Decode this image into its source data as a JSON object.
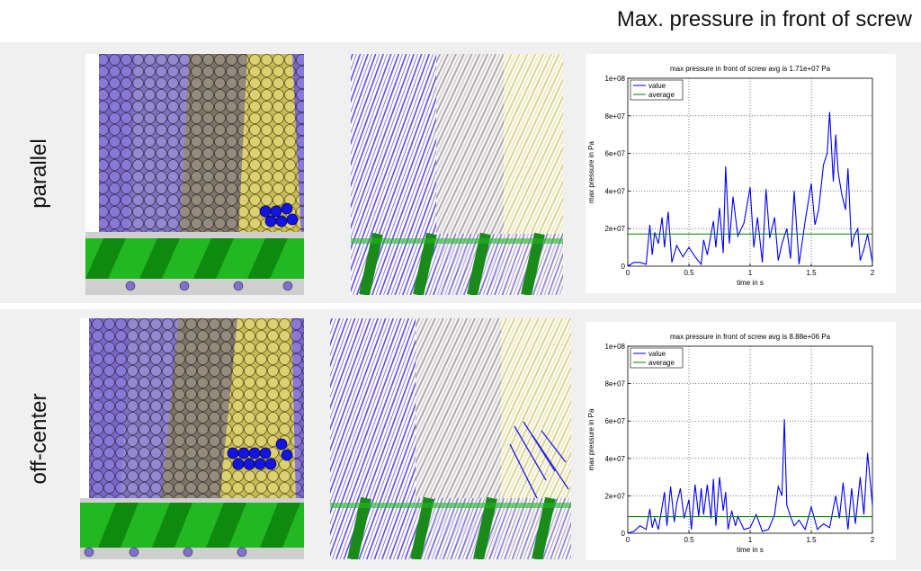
{
  "page": {
    "title": "Max. pressure in front of screw",
    "rows": [
      "parallel",
      "off-center"
    ]
  },
  "colors": {
    "purple": "#7a68c8",
    "grey": "#8c8478",
    "yellow": "#d8cc68",
    "blue": "#1010d8",
    "screw": "#22b822",
    "value_line": "#0000ff",
    "average_line": "#007f00"
  },
  "chart_data": [
    {
      "type": "line",
      "title": "max pressure in front of screw avg is 1.71e+07 Pa",
      "xlabel": "time in s",
      "ylabel": "max pressure in Pa",
      "xlim": [
        0,
        2
      ],
      "ylim": [
        0,
        100000000
      ],
      "xticks": [
        "0",
        "0.5",
        "1",
        "1.5",
        "2"
      ],
      "yticks": [
        "0",
        "2e+07",
        "4e+07",
        "6e+07",
        "8e+07",
        "1e+08"
      ],
      "grid": true,
      "legend": "top-left",
      "average": 17100000,
      "series": [
        {
          "name": "value",
          "x": [
            0,
            0.05,
            0.1,
            0.15,
            0.18,
            0.2,
            0.22,
            0.25,
            0.28,
            0.3,
            0.33,
            0.36,
            0.4,
            0.45,
            0.5,
            0.55,
            0.6,
            0.62,
            0.65,
            0.7,
            0.72,
            0.75,
            0.78,
            0.8,
            0.83,
            0.86,
            0.9,
            0.95,
            1.0,
            1.03,
            1.06,
            1.1,
            1.13,
            1.16,
            1.2,
            1.23,
            1.26,
            1.3,
            1.33,
            1.36,
            1.4,
            1.45,
            1.5,
            1.53,
            1.56,
            1.6,
            1.63,
            1.65,
            1.68,
            1.7,
            1.72,
            1.75,
            1.78,
            1.8,
            1.83,
            1.85,
            1.88,
            1.9,
            1.93,
            1.96,
            2.0
          ],
          "y": [
            0,
            2000000,
            2000000,
            1000000,
            22000000,
            6000000,
            18000000,
            12000000,
            26000000,
            10000000,
            29000000,
            2000000,
            11000000,
            5000000,
            10000000,
            5000000,
            1000000,
            14000000,
            6000000,
            24000000,
            10000000,
            31000000,
            7000000,
            53000000,
            12000000,
            37000000,
            16000000,
            23000000,
            42000000,
            10000000,
            26000000,
            2000000,
            41000000,
            15000000,
            26000000,
            3000000,
            12000000,
            20000000,
            4000000,
            40000000,
            1000000,
            24000000,
            44000000,
            22000000,
            30000000,
            54000000,
            60000000,
            82000000,
            45000000,
            70000000,
            50000000,
            38000000,
            30000000,
            52000000,
            10000000,
            16000000,
            20000000,
            3000000,
            9000000,
            17000000,
            2000000
          ]
        }
      ]
    },
    {
      "type": "line",
      "title": "max pressure in front of screw avg is 8.88e+06 Pa",
      "xlabel": "time in s",
      "ylabel": "max pressure in Pa",
      "xlim": [
        0,
        2
      ],
      "ylim": [
        0,
        100000000
      ],
      "xticks": [
        "0",
        "0.5",
        "1",
        "1.5",
        "2"
      ],
      "yticks": [
        "0",
        "2e+07",
        "4e+07",
        "6e+07",
        "8e+07",
        "1e+08"
      ],
      "grid": true,
      "legend": "top-left",
      "average": 8880000,
      "series": [
        {
          "name": "value",
          "x": [
            0,
            0.05,
            0.1,
            0.15,
            0.18,
            0.2,
            0.22,
            0.25,
            0.28,
            0.3,
            0.32,
            0.35,
            0.38,
            0.4,
            0.43,
            0.46,
            0.5,
            0.52,
            0.55,
            0.58,
            0.6,
            0.62,
            0.65,
            0.68,
            0.7,
            0.72,
            0.75,
            0.78,
            0.8,
            0.82,
            0.85,
            0.88,
            0.9,
            0.95,
            1.0,
            1.05,
            1.1,
            1.15,
            1.2,
            1.23,
            1.26,
            1.28,
            1.3,
            1.33,
            1.36,
            1.4,
            1.45,
            1.5,
            1.55,
            1.6,
            1.65,
            1.7,
            1.73,
            1.76,
            1.8,
            1.83,
            1.86,
            1.9,
            1.93,
            1.96,
            2.0
          ],
          "y": [
            0,
            1000000,
            4000000,
            2000000,
            13000000,
            3000000,
            8000000,
            2000000,
            14000000,
            22000000,
            4000000,
            25000000,
            6000000,
            16000000,
            24000000,
            8000000,
            18000000,
            2000000,
            26000000,
            9000000,
            24000000,
            10000000,
            26000000,
            8000000,
            29000000,
            4000000,
            30000000,
            12000000,
            22000000,
            2000000,
            12000000,
            4000000,
            9000000,
            2000000,
            3000000,
            10000000,
            1000000,
            2000000,
            10000000,
            25000000,
            20000000,
            61000000,
            15000000,
            9000000,
            4000000,
            7000000,
            2000000,
            14000000,
            2000000,
            5000000,
            3000000,
            20000000,
            8000000,
            27000000,
            2000000,
            24000000,
            5000000,
            30000000,
            10000000,
            43000000,
            15000000
          ]
        }
      ]
    }
  ]
}
